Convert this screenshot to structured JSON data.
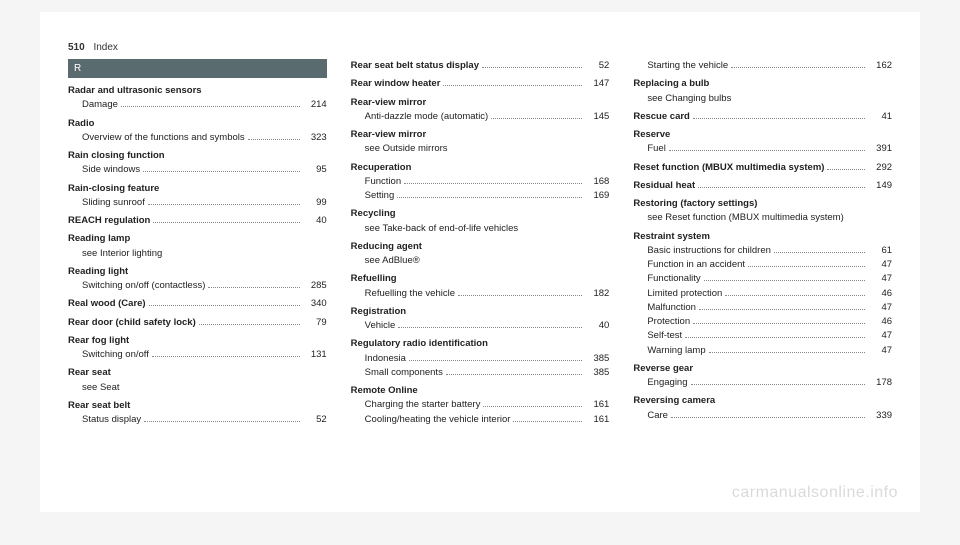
{
  "header": {
    "page_number": "510",
    "section": "Index"
  },
  "letter": "R",
  "watermark": "carmanualsonline.info",
  "columns": [
    [
      {
        "term": "Radar and ultrasonic sensors",
        "subs": [
          {
            "label": "Damage",
            "page": "214"
          }
        ]
      },
      {
        "term": "Radio",
        "subs": [
          {
            "label": "Overview of the functions and symbols",
            "page": "323"
          }
        ]
      },
      {
        "term": "Rain closing function",
        "subs": [
          {
            "label": "Side windows",
            "page": "95"
          }
        ]
      },
      {
        "term": "Rain-closing feature",
        "subs": [
          {
            "label": "Sliding sunroof",
            "page": "99"
          }
        ]
      },
      {
        "term": "REACH regulation",
        "page": "40"
      },
      {
        "term": "Reading lamp",
        "see": "see Interior lighting"
      },
      {
        "term": "Reading light",
        "subs": [
          {
            "label": "Switching on/off (contactless)",
            "page": "285"
          }
        ]
      },
      {
        "term": "Real wood (Care)",
        "page": "340"
      },
      {
        "term": "Rear door (child safety lock)",
        "page": "79"
      },
      {
        "term": "Rear fog light",
        "subs": [
          {
            "label": "Switching on/off",
            "page": "131"
          }
        ]
      },
      {
        "term": "Rear seat",
        "see": "see Seat"
      },
      {
        "term": "Rear seat belt",
        "subs": [
          {
            "label": "Status display",
            "page": "52"
          }
        ]
      }
    ],
    [
      {
        "term": "Rear seat belt status display",
        "page": "52"
      },
      {
        "term": "Rear window heater",
        "page": "147"
      },
      {
        "term": "Rear-view mirror",
        "subs": [
          {
            "label": "Anti-dazzle mode (automatic)",
            "page": "145"
          }
        ]
      },
      {
        "term": "Rear-view mirror",
        "see": "see Outside mirrors"
      },
      {
        "term": "Recuperation",
        "subs": [
          {
            "label": "Function",
            "page": "168"
          },
          {
            "label": "Setting",
            "page": "169"
          }
        ]
      },
      {
        "term": "Recycling",
        "see": "see Take-back of end-of-life vehicles"
      },
      {
        "term": "Reducing agent",
        "see": "see AdBlue®"
      },
      {
        "term": "Refuelling",
        "subs": [
          {
            "label": "Refuelling the vehicle",
            "page": "182"
          }
        ]
      },
      {
        "term": "Registration",
        "subs": [
          {
            "label": "Vehicle",
            "page": "40"
          }
        ]
      },
      {
        "term": "Regulatory radio identification",
        "subs": [
          {
            "label": "Indonesia",
            "page": "385"
          },
          {
            "label": "Small components",
            "page": "385"
          }
        ]
      },
      {
        "term": "Remote Online",
        "subs": [
          {
            "label": "Charging the starter battery",
            "page": "161"
          },
          {
            "label": "Cooling/heating the vehicle interior",
            "page": "161"
          }
        ]
      }
    ],
    [
      {
        "plain_sub": {
          "label": "Starting the vehicle",
          "page": "162"
        }
      },
      {
        "term": "Replacing a bulb",
        "see": "see Changing bulbs"
      },
      {
        "term": "Rescue card",
        "page": "41"
      },
      {
        "term": "Reserve",
        "subs": [
          {
            "label": "Fuel",
            "page": "391"
          }
        ]
      },
      {
        "term": "Reset function (MBUX multimedia system)",
        "page": "292"
      },
      {
        "term": "Residual heat",
        "page": "149"
      },
      {
        "term": "Restoring (factory settings)",
        "see": "see Reset function (MBUX multimedia system)"
      },
      {
        "term": "Restraint system",
        "subs": [
          {
            "label": "Basic instructions for children",
            "page": "61"
          },
          {
            "label": "Function in an accident",
            "page": "47"
          },
          {
            "label": "Functionality",
            "page": "47"
          },
          {
            "label": "Limited protection",
            "page": "46"
          },
          {
            "label": "Malfunction",
            "page": "47"
          },
          {
            "label": "Protection",
            "page": "46"
          },
          {
            "label": "Self-test",
            "page": "47"
          },
          {
            "label": "Warning lamp",
            "page": "47"
          }
        ]
      },
      {
        "term": "Reverse gear",
        "subs": [
          {
            "label": "Engaging",
            "page": "178"
          }
        ]
      },
      {
        "term": "Reversing camera",
        "subs": [
          {
            "label": "Care",
            "page": "339"
          }
        ]
      }
    ]
  ]
}
